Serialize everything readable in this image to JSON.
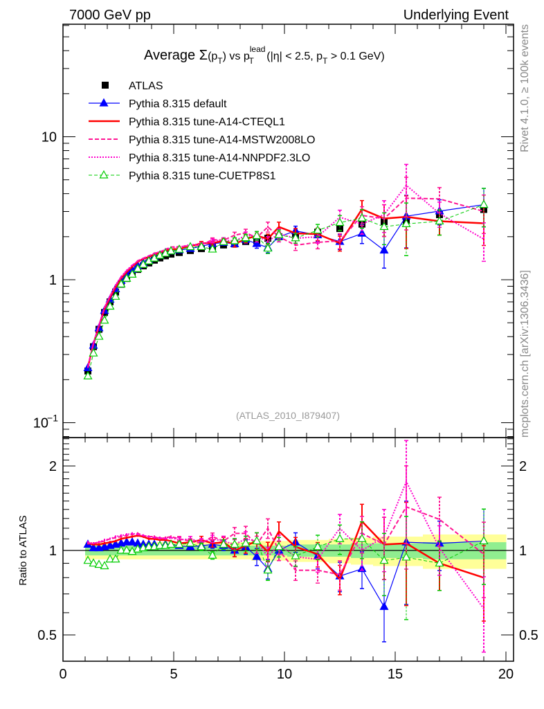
{
  "header": {
    "left": "7000 GeV pp",
    "right": "Underlying Event"
  },
  "side_texts": {
    "top": "Rivet 4.1.0, ≥ 100k events",
    "bottom": "mcplots.cern.ch [arXiv:1306.3436]"
  },
  "watermark": "(ATLAS_2010_I879407)",
  "chart_data": {
    "type": "line",
    "title_parts": {
      "a": "Average ",
      "sigma": "Σ",
      "b": "(p",
      "sub1": "T",
      "c": ")",
      "d": " vs p",
      "sup": "lead",
      "sub2": "T",
      "e": " (|η| < 2.5, p",
      "sub3": "T",
      "f": " > 0.1 GeV)"
    },
    "xlim": [
      0,
      20.35
    ],
    "ylim_main": [
      0.079,
      62
    ],
    "yscale_main": "log",
    "ylim_ratio": [
      0.4,
      2.52
    ],
    "yscale_ratio": "log",
    "ratio_ylabel": "Ratio to ATLAS",
    "x_ticks": [
      "0",
      "5",
      "10",
      "15",
      "20"
    ],
    "main_y_ticks": [
      {
        "v": 10,
        "label": "10",
        "sup": ""
      },
      {
        "v": 1,
        "label": "1",
        "sup": ""
      },
      {
        "v": 0.1,
        "label": "10",
        "sup": "−1"
      }
    ],
    "ratio_y_ticks": [
      {
        "v": 2,
        "label": "2"
      },
      {
        "v": 1,
        "label": "1"
      },
      {
        "v": 0.5,
        "label": "0.5"
      }
    ],
    "legend_position": "top-left",
    "x": [
      1.125,
      1.375,
      1.625,
      1.875,
      2.125,
      2.375,
      2.625,
      2.875,
      3.125,
      3.375,
      3.625,
      3.875,
      4.125,
      4.375,
      4.625,
      4.875,
      5.25,
      5.75,
      6.25,
      6.75,
      7.25,
      7.75,
      8.25,
      8.75,
      9.25,
      9.75,
      10.5,
      11.5,
      12.5,
      13.5,
      14.5,
      15.5,
      17,
      19
    ],
    "data": {
      "name": "ATLAS",
      "values": [
        0.23,
        0.34,
        0.45,
        0.59,
        0.7,
        0.82,
        0.93,
        1.02,
        1.1,
        1.18,
        1.25,
        1.31,
        1.37,
        1.42,
        1.47,
        1.51,
        1.55,
        1.6,
        1.65,
        1.7,
        1.75,
        1.78,
        1.85,
        1.88,
        1.95,
        2.0,
        2.05,
        2.15,
        2.28,
        2.45,
        2.55,
        2.6,
        2.85,
        3.1
      ],
      "band_total_rel": [
        0.07,
        0.07,
        0.07,
        0.07,
        0.07,
        0.07,
        0.07,
        0.07,
        0.07,
        0.07,
        0.07,
        0.07,
        0.07,
        0.07,
        0.07,
        0.07,
        0.07,
        0.07,
        0.07,
        0.07,
        0.07,
        0.07,
        0.07,
        0.08,
        0.08,
        0.08,
        0.09,
        0.09,
        0.1,
        0.11,
        0.12,
        0.12,
        0.14,
        0.14
      ],
      "band_stat_rel": [
        0.04,
        0.04,
        0.04,
        0.04,
        0.04,
        0.04,
        0.04,
        0.04,
        0.04,
        0.04,
        0.04,
        0.04,
        0.04,
        0.04,
        0.04,
        0.04,
        0.04,
        0.04,
        0.04,
        0.04,
        0.04,
        0.04,
        0.04,
        0.04,
        0.04,
        0.04,
        0.05,
        0.05,
        0.05,
        0.06,
        0.06,
        0.06,
        0.07,
        0.07
      ]
    },
    "model_rel_err": [
      0.01,
      0.01,
      0.01,
      0.01,
      0.01,
      0.01,
      0.01,
      0.01,
      0.01,
      0.01,
      0.01,
      0.01,
      0.01,
      0.01,
      0.01,
      0.01,
      0.02,
      0.02,
      0.03,
      0.03,
      0.04,
      0.05,
      0.06,
      0.07,
      0.08,
      0.08,
      0.08,
      0.1,
      0.12,
      0.15,
      0.25,
      0.4,
      0.2,
      0.3
    ],
    "series": [
      {
        "name": "Pythia 8.315 default",
        "color": "#0000ff",
        "ratio": [
          1.05,
          1.02,
          1.02,
          1.03,
          1.04,
          1.05,
          1.06,
          1.07,
          1.07,
          1.06,
          1.05,
          1.05,
          1.05,
          1.04,
          1.05,
          1.05,
          1.04,
          1.03,
          1.04,
          1.05,
          1.04,
          1.0,
          1.03,
          0.95,
          0.86,
          1.0,
          1.07,
          0.955,
          0.81,
          0.86,
          0.63,
          1.07,
          1.06,
          1.08
        ]
      },
      {
        "name": "Pythia 8.315 tune-A14-CTEQL1",
        "color": "#ff0000",
        "ratio": [
          1.06,
          1.05,
          1.05,
          1.06,
          1.07,
          1.08,
          1.1,
          1.11,
          1.12,
          1.13,
          1.12,
          1.1,
          1.1,
          1.09,
          1.09,
          1.08,
          1.06,
          1.07,
          1.09,
          1.06,
          1.07,
          1.0,
          1.04,
          1.08,
          0.99,
          1.17,
          1.03,
          0.97,
          0.79,
          1.27,
          1.05,
          1.06,
          0.9,
          0.8
        ]
      },
      {
        "name": "Pythia 8.315 tune-A14-MSTW2008LO",
        "color": "#ff1493",
        "ratio": [
          1.06,
          1.06,
          1.07,
          1.08,
          1.1,
          1.11,
          1.12,
          1.13,
          1.14,
          1.15,
          1.13,
          1.12,
          1.12,
          1.1,
          1.11,
          1.12,
          1.1,
          1.08,
          1.06,
          1.12,
          1.08,
          1.15,
          1.15,
          1.05,
          1.2,
          1.0,
          0.85,
          0.85,
          0.82,
          1.15,
          1.05,
          1.43,
          1.29,
          0.97
        ]
      },
      {
        "name": "Pythia 8.315 tune-A14-NNPDF2.3LO",
        "color": "#ff00cc",
        "ratio": [
          1.07,
          1.06,
          1.07,
          1.09,
          1.1,
          1.12,
          1.13,
          1.14,
          1.15,
          1.14,
          1.13,
          1.12,
          1.11,
          1.11,
          1.1,
          1.11,
          1.09,
          1.1,
          1.07,
          1.1,
          1.08,
          1.05,
          1.1,
          1.08,
          0.95,
          1.05,
          0.95,
          0.93,
          1.2,
          1.0,
          1.12,
          1.76,
          1.02,
          0.62
        ]
      },
      {
        "name": "Pythia 8.315 tune-CUETP8S1",
        "color": "#00cc00",
        "ratio": [
          0.92,
          0.9,
          0.89,
          0.88,
          0.93,
          0.93,
          1.0,
          1.0,
          0.99,
          1.01,
          1.02,
          1.03,
          1.03,
          1.04,
          1.04,
          1.05,
          1.05,
          1.06,
          1.03,
          0.96,
          1.05,
          1.05,
          1.06,
          1.08,
          0.85,
          1.03,
          0.955,
          1.03,
          1.1,
          1.1,
          0.92,
          0.945,
          0.9,
          1.08
        ]
      }
    ]
  }
}
